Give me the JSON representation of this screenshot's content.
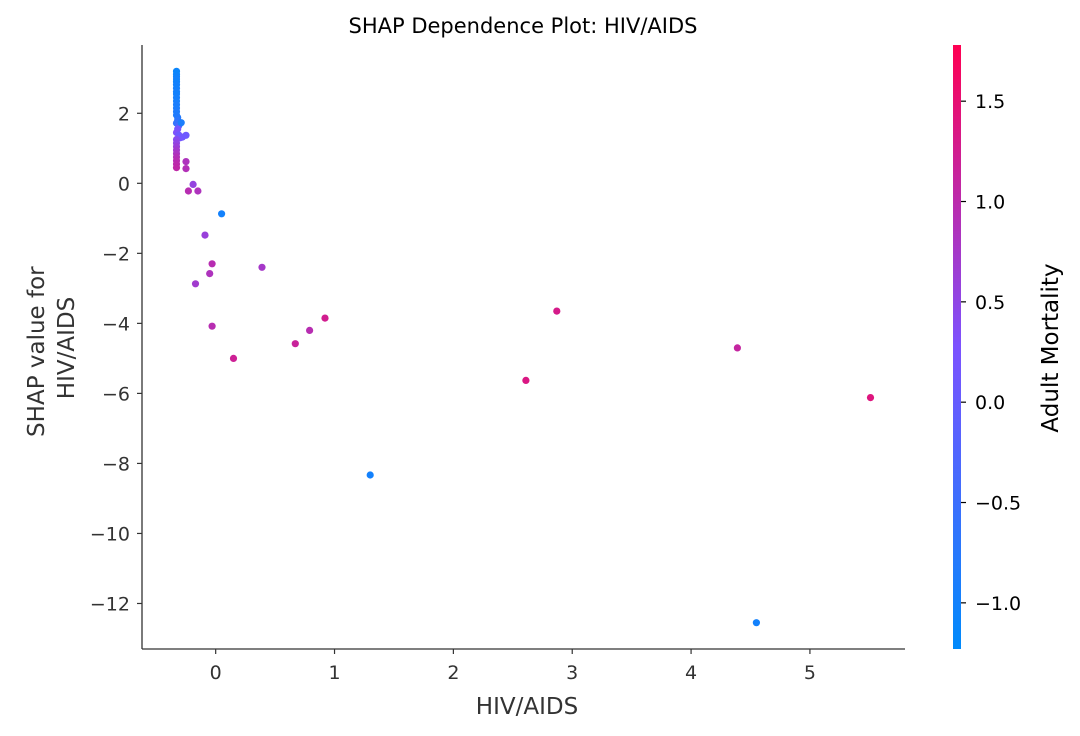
{
  "chart_data": {
    "type": "scatter",
    "title": "SHAP Dependence Plot:  HIV/AIDS",
    "xlabel": "HIV/AIDS",
    "ylabel_lines": [
      "SHAP value for",
      "HIV/AIDS"
    ],
    "xlim": [
      -0.62,
      5.8
    ],
    "ylim": [
      -13.3,
      3.95
    ],
    "xticks": [
      0,
      1,
      2,
      3,
      4,
      5
    ],
    "xtick_labels": [
      "0",
      "1",
      "2",
      "3",
      "4",
      "5"
    ],
    "yticks": [
      2,
      0,
      -2,
      -4,
      -6,
      -8,
      -10,
      -12
    ],
    "ytick_labels": [
      "2",
      "0",
      "−2",
      "−4",
      "−6",
      "−8",
      "−10",
      "−12"
    ],
    "grid": false,
    "colorbar": {
      "label": "Adult Mortality",
      "range": [
        -1.23,
        1.78
      ],
      "ticks": [
        1.5,
        1.0,
        0.5,
        0.0,
        -0.5,
        -1.0
      ],
      "tick_labels": [
        "1.5",
        "1.0",
        "0.5",
        "0.0",
        "−0.5",
        "−1.0"
      ],
      "color_low": "#008afb",
      "color_mid": "#7c52ff",
      "color_high": "#ff0052"
    },
    "points": [
      {
        "x": -0.33,
        "y": 3.2,
        "c": -1.1
      },
      {
        "x": -0.33,
        "y": 3.12,
        "c": -1.1
      },
      {
        "x": -0.33,
        "y": 3.05,
        "c": -1.05
      },
      {
        "x": -0.33,
        "y": 2.98,
        "c": -1.0
      },
      {
        "x": -0.33,
        "y": 2.9,
        "c": -1.05
      },
      {
        "x": -0.33,
        "y": 2.82,
        "c": -1.0
      },
      {
        "x": -0.33,
        "y": 2.72,
        "c": -1.0
      },
      {
        "x": -0.33,
        "y": 2.62,
        "c": -0.95
      },
      {
        "x": -0.33,
        "y": 2.55,
        "c": -1.0
      },
      {
        "x": -0.33,
        "y": 2.45,
        "c": -0.95
      },
      {
        "x": -0.33,
        "y": 2.35,
        "c": -0.95
      },
      {
        "x": -0.33,
        "y": 2.25,
        "c": -0.9
      },
      {
        "x": -0.33,
        "y": 2.15,
        "c": -0.9
      },
      {
        "x": -0.33,
        "y": 2.05,
        "c": -0.85
      },
      {
        "x": -0.33,
        "y": 1.95,
        "c": -0.85
      },
      {
        "x": -0.32,
        "y": 1.88,
        "c": -0.8
      },
      {
        "x": -0.32,
        "y": 1.8,
        "c": -0.7
      },
      {
        "x": -0.33,
        "y": 1.72,
        "c": -0.6
      },
      {
        "x": -0.31,
        "y": 1.65,
        "c": -0.4
      },
      {
        "x": -0.29,
        "y": 1.73,
        "c": -0.9
      },
      {
        "x": -0.32,
        "y": 1.55,
        "c": 0.2
      },
      {
        "x": -0.33,
        "y": 1.45,
        "c": 0.3
      },
      {
        "x": -0.31,
        "y": 1.38,
        "c": 0.1
      },
      {
        "x": -0.3,
        "y": 1.3,
        "c": 0.2
      },
      {
        "x": -0.28,
        "y": 1.32,
        "c": 0.15
      },
      {
        "x": -0.25,
        "y": 1.37,
        "c": 0.1
      },
      {
        "x": -0.33,
        "y": 1.25,
        "c": 0.4
      },
      {
        "x": -0.33,
        "y": 1.15,
        "c": 0.5
      },
      {
        "x": -0.33,
        "y": 1.05,
        "c": 0.6
      },
      {
        "x": -0.33,
        "y": 0.95,
        "c": 0.7
      },
      {
        "x": -0.33,
        "y": 0.85,
        "c": 0.8
      },
      {
        "x": -0.33,
        "y": 0.75,
        "c": 0.9
      },
      {
        "x": -0.33,
        "y": 0.65,
        "c": 0.95
      },
      {
        "x": -0.33,
        "y": 0.55,
        "c": 1.0
      },
      {
        "x": -0.33,
        "y": 0.45,
        "c": 1.05
      },
      {
        "x": -0.25,
        "y": 0.62,
        "c": 0.85
      },
      {
        "x": -0.25,
        "y": 0.42,
        "c": 0.9
      },
      {
        "x": -0.23,
        "y": -0.22,
        "c": 0.95
      },
      {
        "x": -0.19,
        "y": -0.03,
        "c": 0.55
      },
      {
        "x": -0.15,
        "y": -0.22,
        "c": 0.85
      },
      {
        "x": 0.05,
        "y": -0.87,
        "c": -1.0
      },
      {
        "x": -0.09,
        "y": -1.48,
        "c": 0.6
      },
      {
        "x": -0.03,
        "y": -2.3,
        "c": 0.95
      },
      {
        "x": -0.05,
        "y": -2.58,
        "c": 0.85
      },
      {
        "x": 0.39,
        "y": -2.4,
        "c": 0.75
      },
      {
        "x": -0.17,
        "y": -2.87,
        "c": 0.7
      },
      {
        "x": 2.87,
        "y": -3.65,
        "c": 1.3
      },
      {
        "x": 0.92,
        "y": -3.85,
        "c": 1.25
      },
      {
        "x": -0.03,
        "y": -4.08,
        "c": 0.95
      },
      {
        "x": 0.79,
        "y": -4.2,
        "c": 0.95
      },
      {
        "x": 0.67,
        "y": -4.58,
        "c": 1.15
      },
      {
        "x": 4.39,
        "y": -4.7,
        "c": 1.1
      },
      {
        "x": 0.15,
        "y": -5.0,
        "c": 1.2
      },
      {
        "x": 2.61,
        "y": -5.63,
        "c": 1.35
      },
      {
        "x": 5.51,
        "y": -6.12,
        "c": 1.4
      },
      {
        "x": 1.3,
        "y": -8.33,
        "c": -1.0
      },
      {
        "x": 4.55,
        "y": -12.55,
        "c": -1.0
      }
    ]
  }
}
